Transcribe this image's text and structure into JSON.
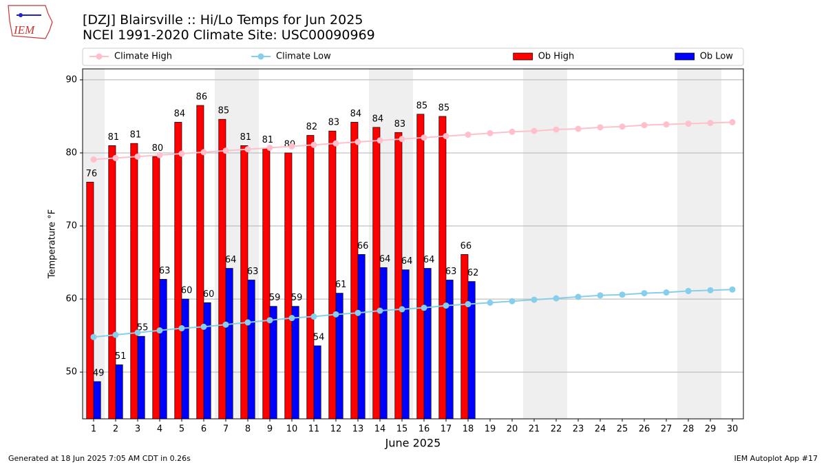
{
  "logo_text": "IEM",
  "chart_data": {
    "type": "bar",
    "title": "[DZJ] Blairsville :: Hi/Lo Temps for Jun 2025",
    "subtitle": "NCEI 1991-2020 Climate Site: USC00090969",
    "x_label": "June 2025",
    "y_label": "Temperature °F",
    "x": [
      1,
      2,
      3,
      4,
      5,
      6,
      7,
      8,
      9,
      10,
      11,
      12,
      13,
      14,
      15,
      16,
      17,
      18,
      19,
      20,
      21,
      22,
      23,
      24,
      25,
      26,
      27,
      28,
      29,
      30
    ],
    "xlim": [
      0.5,
      30.5
    ],
    "xticks": [
      1,
      2,
      3,
      4,
      5,
      6,
      7,
      8,
      9,
      10,
      11,
      12,
      13,
      14,
      15,
      16,
      17,
      18,
      19,
      20,
      21,
      22,
      23,
      24,
      25,
      26,
      27,
      28,
      29,
      30
    ],
    "ylim": [
      43.6,
      91.5
    ],
    "yticks": [
      50,
      60,
      70,
      80,
      90
    ],
    "grid": true,
    "weekend_days": [
      1,
      7,
      8,
      14,
      15,
      21,
      22,
      28,
      29
    ],
    "series": [
      {
        "name": "Climate High",
        "type": "line",
        "color": "#ffc0cb",
        "values": [
          79.1,
          79.3,
          79.5,
          79.7,
          79.9,
          80.1,
          80.3,
          80.5,
          80.7,
          80.9,
          81.1,
          81.3,
          81.5,
          81.7,
          81.9,
          82.1,
          82.3,
          82.5,
          82.7,
          82.9,
          83.0,
          83.2,
          83.3,
          83.5,
          83.6,
          83.8,
          83.9,
          84.0,
          84.1,
          84.2
        ]
      },
      {
        "name": "Climate Low",
        "type": "line",
        "color": "#87ceeb",
        "values": [
          54.8,
          55.1,
          55.4,
          55.7,
          56.0,
          56.2,
          56.5,
          56.8,
          57.1,
          57.4,
          57.6,
          57.9,
          58.1,
          58.4,
          58.6,
          58.8,
          59.1,
          59.3,
          59.5,
          59.7,
          59.9,
          60.1,
          60.3,
          60.5,
          60.6,
          60.8,
          60.9,
          61.1,
          61.2,
          61.3
        ]
      },
      {
        "name": "Ob High",
        "type": "bar",
        "color": "#ff0000",
        "values": [
          76.0,
          81.0,
          81.3,
          79.5,
          84.2,
          86.5,
          84.6,
          81.0,
          80.6,
          80.0,
          82.4,
          83.0,
          84.2,
          83.5,
          82.8,
          85.3,
          85.0,
          66.1,
          null,
          null,
          null,
          null,
          null,
          null,
          null,
          null,
          null,
          null,
          null,
          null
        ],
        "value_labels": [
          "76",
          "81",
          "81",
          "80",
          "84",
          "86",
          "85",
          "81",
          "81",
          "80",
          "82",
          "83",
          "84",
          "84",
          "83",
          "85",
          "85",
          "66",
          null,
          null,
          null,
          null,
          null,
          null,
          null,
          null,
          null,
          null,
          null,
          null
        ]
      },
      {
        "name": "Ob Low",
        "type": "bar",
        "color": "#0000ff",
        "values": [
          48.7,
          51.0,
          54.9,
          62.7,
          60.0,
          59.5,
          64.2,
          62.6,
          59.0,
          59.0,
          53.6,
          60.8,
          66.1,
          64.3,
          64.0,
          64.2,
          62.6,
          62.4,
          null,
          null,
          null,
          null,
          null,
          null,
          null,
          null,
          null,
          null,
          null,
          null
        ],
        "value_labels": [
          "49",
          "51",
          "55",
          "63",
          "60",
          "60",
          "64",
          "63",
          "59",
          "59",
          "54",
          "61",
          "66",
          "64",
          "64",
          "64",
          "63",
          "62",
          null,
          null,
          null,
          null,
          null,
          null,
          null,
          null,
          null,
          null,
          null,
          null
        ]
      }
    ],
    "legend_position": "top",
    "footer_left": "Generated at 18 Jun 2025 7:05 AM CDT in 0.26s",
    "footer_right": "IEM Autoplot App #17"
  }
}
